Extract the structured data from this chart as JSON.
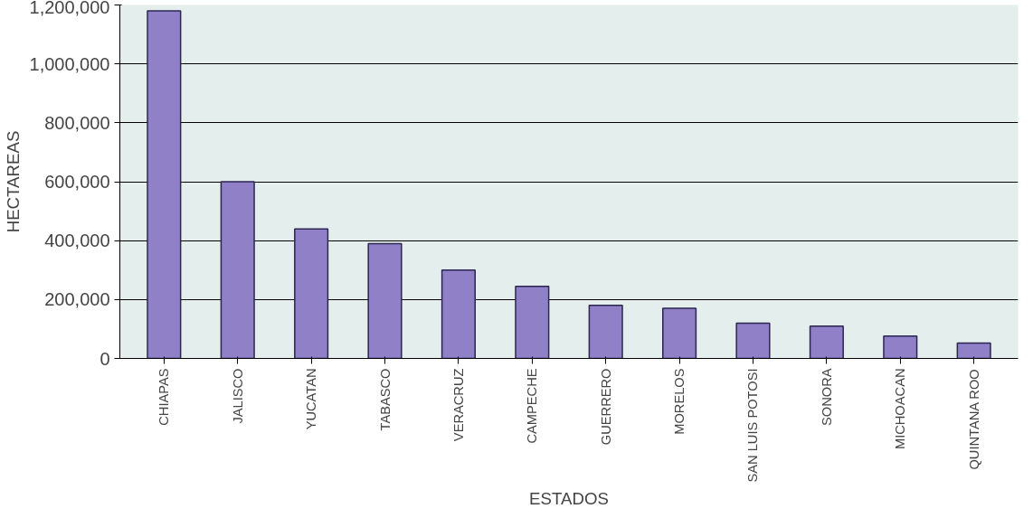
{
  "chart_data": {
    "type": "bar",
    "xlabel": "ESTADOS",
    "ylabel": "HECTAREAS",
    "categories": [
      "CHIAPAS",
      "JALISCO",
      "YUCATAN",
      "TABASCO",
      "VERACRUZ",
      "CAMPECHE",
      "GUERRERO",
      "MORELOS",
      "SAN LUIS POTOSI",
      "SONORA",
      "MICHOACAN",
      "QUINTANA ROO"
    ],
    "values": [
      1180000,
      600000,
      440000,
      390000,
      300000,
      245000,
      180000,
      170000,
      120000,
      110000,
      76000,
      52000
    ],
    "color": "#8f80c8",
    "ylim": [
      0,
      1200000
    ],
    "yticks": [
      {
        "value": 0,
        "label": "0"
      },
      {
        "value": 200000,
        "label": "200,000"
      },
      {
        "value": 400000,
        "label": "400,000"
      },
      {
        "value": 600000,
        "label": "600,000"
      },
      {
        "value": 800000,
        "label": "800,000"
      },
      {
        "value": 1000000,
        "label": "1,000,000"
      },
      {
        "value": 1200000,
        "label": "1,200,000"
      }
    ],
    "grid": "y"
  }
}
